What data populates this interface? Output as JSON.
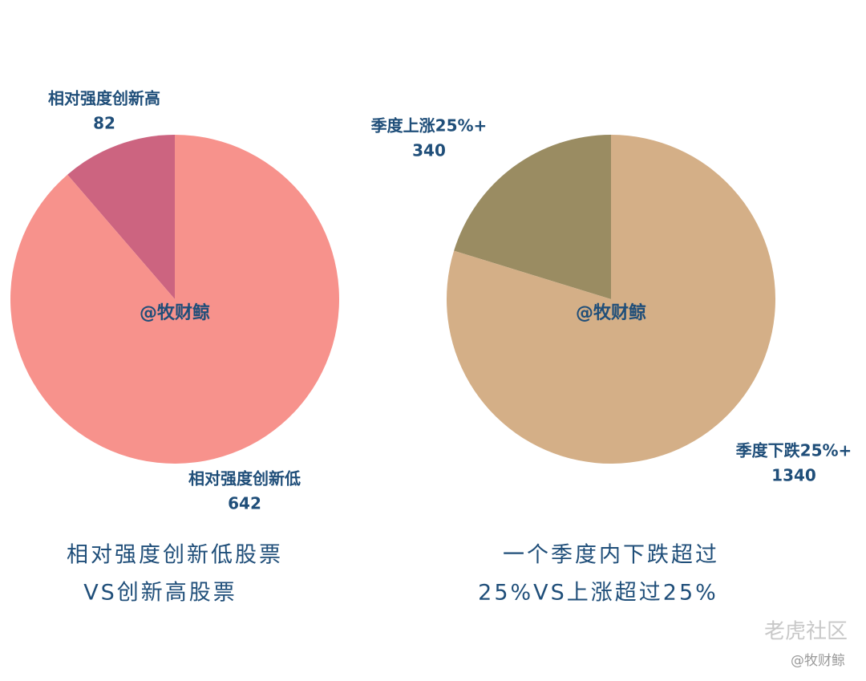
{
  "chart_data": [
    {
      "type": "pie",
      "title": [
        "相对强度创新低股票",
        "VS创新高股票"
      ],
      "watermark": "@牧财鲸",
      "categories": [
        "相对强度创新高",
        "相对强度创新低"
      ],
      "values": [
        82,
        642
      ],
      "colors": [
        "#cc6480",
        "#f7928c"
      ]
    },
    {
      "type": "pie",
      "title": [
        "一个季度内下跌超过",
        "25%VS上涨超过25%"
      ],
      "watermark": "@牧财鲸",
      "categories": [
        "季度上涨25%+",
        "季度下跌25%+"
      ],
      "values": [
        340,
        1340
      ],
      "colors": [
        "#9a8c62",
        "#d4af87"
      ]
    }
  ],
  "footer": {
    "brand": "老虎社区",
    "handle": "@牧财鲸"
  }
}
